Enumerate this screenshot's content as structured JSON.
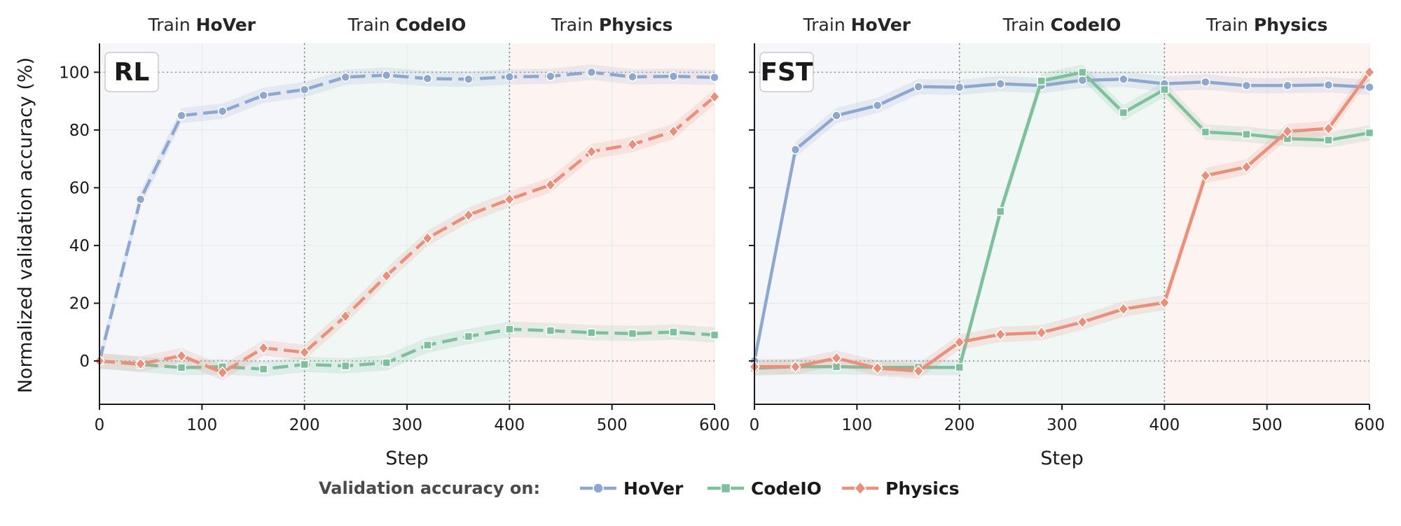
{
  "ylabel": "Normalized validation accuracy (%)",
  "legend": {
    "title": "Validation accuracy on:",
    "items": [
      "HoVer",
      "CodeIO",
      "Physics"
    ]
  },
  "colors": {
    "HoVer": "#8EA7CF",
    "CodeIO": "#7EBF9C",
    "Physics": "#E8907B",
    "phase1_bg": "#F4F6F9",
    "phase2_bg": "#F0F7F4",
    "phase3_bg": "#FDF3F1"
  },
  "chart_data": [
    {
      "type": "line",
      "title": "RL",
      "xlabel": "Step",
      "ylabel": "Normalized validation accuracy (%)",
      "xlim": [
        0,
        600
      ],
      "ylim": [
        -15,
        110
      ],
      "xticks": [
        0,
        100,
        200,
        300,
        400,
        500,
        600
      ],
      "yticks": [
        0,
        20,
        40,
        60,
        80,
        100
      ],
      "line_style": "dashed",
      "phases": [
        {
          "prefix": "Train ",
          "task": "HoVer",
          "range": [
            0,
            200
          ]
        },
        {
          "prefix": "Train ",
          "task": "CodeIO",
          "range": [
            200,
            400
          ]
        },
        {
          "prefix": "Train ",
          "task": "Physics",
          "range": [
            400,
            600
          ]
        }
      ],
      "x": [
        0,
        40,
        80,
        120,
        160,
        200,
        240,
        280,
        320,
        360,
        400,
        440,
        480,
        520,
        560,
        600
      ],
      "series": [
        {
          "name": "HoVer",
          "marker": "circle",
          "values": [
            0,
            56,
            85,
            86.5,
            92,
            94,
            98.3,
            99,
            97.8,
            97.6,
            98.4,
            98.6,
            100,
            98.4,
            98.6,
            98.2
          ]
        },
        {
          "name": "CodeIO",
          "marker": "square",
          "values": [
            0,
            -1.2,
            -2.3,
            -2.0,
            -2.8,
            -1.2,
            -1.7,
            -0.6,
            5.5,
            8.5,
            11,
            10.5,
            9.8,
            9.5,
            10,
            9
          ]
        },
        {
          "name": "Physics",
          "marker": "diamond",
          "values": [
            0,
            -1,
            1.8,
            -4,
            4.5,
            3,
            15.5,
            29.5,
            42.5,
            50.5,
            56,
            61,
            72.5,
            75,
            79.5,
            91.5
          ]
        }
      ]
    },
    {
      "type": "line",
      "title": "FST",
      "xlabel": "Step",
      "ylabel": "",
      "xlim": [
        0,
        600
      ],
      "ylim": [
        -15,
        110
      ],
      "xticks": [
        0,
        100,
        200,
        300,
        400,
        500,
        600
      ],
      "yticks": [
        0,
        20,
        40,
        60,
        80,
        100
      ],
      "line_style": "solid",
      "phases": [
        {
          "prefix": "Train ",
          "task": "HoVer",
          "range": [
            0,
            200
          ]
        },
        {
          "prefix": "Train ",
          "task": "CodeIO",
          "range": [
            200,
            400
          ]
        },
        {
          "prefix": "Train ",
          "task": "Physics",
          "range": [
            400,
            600
          ]
        }
      ],
      "x": [
        0,
        40,
        80,
        120,
        160,
        200,
        240,
        280,
        320,
        360,
        400,
        440,
        480,
        520,
        560,
        600
      ],
      "series": [
        {
          "name": "HoVer",
          "marker": "circle",
          "values": [
            0,
            73.2,
            85,
            88.5,
            95,
            94.8,
            96,
            95.4,
            97.2,
            97.6,
            96,
            96.6,
            95.4,
            95.4,
            95.6,
            94.8
          ]
        },
        {
          "name": "CodeIO",
          "marker": "square",
          "values": [
            -2.5,
            -2,
            -2,
            -2.2,
            -2.2,
            -2.2,
            51.8,
            97,
            100,
            86,
            94,
            79.3,
            78.5,
            77,
            76.5,
            79
          ]
        },
        {
          "name": "Physics",
          "marker": "diamond",
          "values": [
            -2,
            -2,
            1,
            -2.5,
            -3.5,
            6.5,
            9.2,
            9.8,
            13.5,
            18,
            20.2,
            64.2,
            67.2,
            79.5,
            80.5,
            100
          ]
        }
      ]
    }
  ]
}
